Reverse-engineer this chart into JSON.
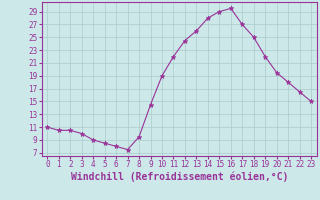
{
  "x": [
    0,
    1,
    2,
    3,
    4,
    5,
    6,
    7,
    8,
    9,
    10,
    11,
    12,
    13,
    14,
    15,
    16,
    17,
    18,
    19,
    20,
    21,
    22,
    23
  ],
  "y": [
    11,
    10.5,
    10.5,
    10,
    9,
    8.5,
    8,
    7.5,
    9.5,
    14.5,
    19,
    22,
    24.5,
    26,
    28,
    29,
    29.5,
    27,
    25,
    22,
    19.5,
    18,
    16.5,
    15
  ],
  "line_color": "#993399",
  "marker": "*",
  "marker_color": "#993399",
  "bg_color": "#cce8e8",
  "grid_color": "#aacccc",
  "xlabel": "Windchill (Refroidissement éolien,°C)",
  "yticks": [
    7,
    9,
    11,
    13,
    15,
    17,
    19,
    21,
    23,
    25,
    27,
    29
  ],
  "xticks": [
    0,
    1,
    2,
    3,
    4,
    5,
    6,
    7,
    8,
    9,
    10,
    11,
    12,
    13,
    14,
    15,
    16,
    17,
    18,
    19,
    20,
    21,
    22,
    23
  ],
  "ylim": [
    6.5,
    30.5
  ],
  "xlim": [
    -0.5,
    23.5
  ],
  "tick_color": "#993399",
  "tick_fontsize": 5.5,
  "xlabel_fontsize": 7.0,
  "spine_color": "#993399"
}
